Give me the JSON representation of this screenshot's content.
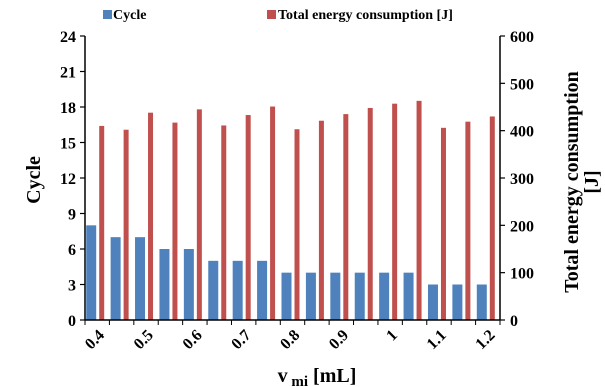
{
  "chart_data": {
    "type": "bar",
    "categories": [
      "0.4",
      "0.45",
      "0.5",
      "0.55",
      "0.6",
      "0.65",
      "0.7",
      "0.75",
      "0.8",
      "0.85",
      "0.9",
      "0.95",
      "1",
      "1.05",
      "1.1",
      "1.15",
      "1.2"
    ],
    "x_tick_labels": [
      "0.4",
      "0.5",
      "0.6",
      "0.7",
      "0.8",
      "0.9",
      "1",
      "1.1",
      "1.2"
    ],
    "series": [
      {
        "name": "Cycle",
        "axis": "left",
        "color": "#4f81bd",
        "values": [
          8,
          7,
          7,
          6,
          6,
          5,
          5,
          5,
          4,
          4,
          4,
          4,
          4,
          4,
          3,
          3,
          3
        ]
      },
      {
        "name": "Total energy consumption [J]",
        "axis": "right",
        "color": "#c0504d",
        "values": [
          410,
          402,
          438,
          417,
          445,
          411,
          433,
          451,
          403,
          421,
          435,
          448,
          457,
          463,
          406,
          419,
          430
        ]
      }
    ],
    "xlabel": "v_mi [mL]",
    "ylabel_left": "Cycle",
    "ylabel_right_line1": "Total energy consumption",
    "ylabel_right_line2": "[J]",
    "ylim_left": [
      0,
      24
    ],
    "yticks_left": [
      0,
      3,
      6,
      9,
      12,
      15,
      18,
      21,
      24
    ],
    "ylim_right": [
      0,
      600
    ],
    "yticks_right": [
      0,
      100,
      200,
      300,
      400,
      500,
      600
    ],
    "grid": false,
    "legend_position": "top"
  }
}
